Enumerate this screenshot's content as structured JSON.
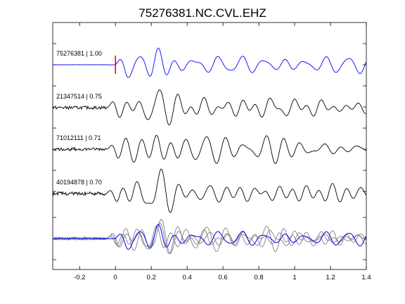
{
  "chart_data": {
    "type": "line",
    "title": "75276381.NC.CVL.EHZ",
    "xlabel": "",
    "ylabel": "",
    "xlim": [
      -0.35,
      1.4
    ],
    "x_ticks": [
      -0.2,
      0,
      0.2,
      0.4,
      0.6,
      0.8,
      1.0,
      1.2,
      1.4
    ],
    "x_tick_labels": [
      "-0.2",
      "0",
      "0.2",
      "0.4",
      "0.6",
      "0.8",
      "1",
      "1.2",
      "1.4"
    ],
    "grid": false,
    "pick_time": 0,
    "colors": {
      "reference": "#0000ff",
      "trace": "#000000",
      "overlay": "#808080",
      "pick": "#ff0000"
    },
    "traces": [
      {
        "label": "75276381 | 1.00",
        "id": "75276381",
        "correlation": 1.0,
        "color": "#0000ff"
      },
      {
        "label": "21347514 | 0.75",
        "id": "21347514",
        "correlation": 0.75,
        "color": "#000000"
      },
      {
        "label": "71012111 | 0.71",
        "id": "71012111",
        "correlation": 0.71,
        "color": "#000000"
      },
      {
        "label": "40194878 | 0.70",
        "id": "40194878",
        "correlation": 0.7,
        "color": "#000000"
      }
    ],
    "overlay": {
      "description": "",
      "reference_color": "#0000ff",
      "others_color": "#808080"
    }
  }
}
